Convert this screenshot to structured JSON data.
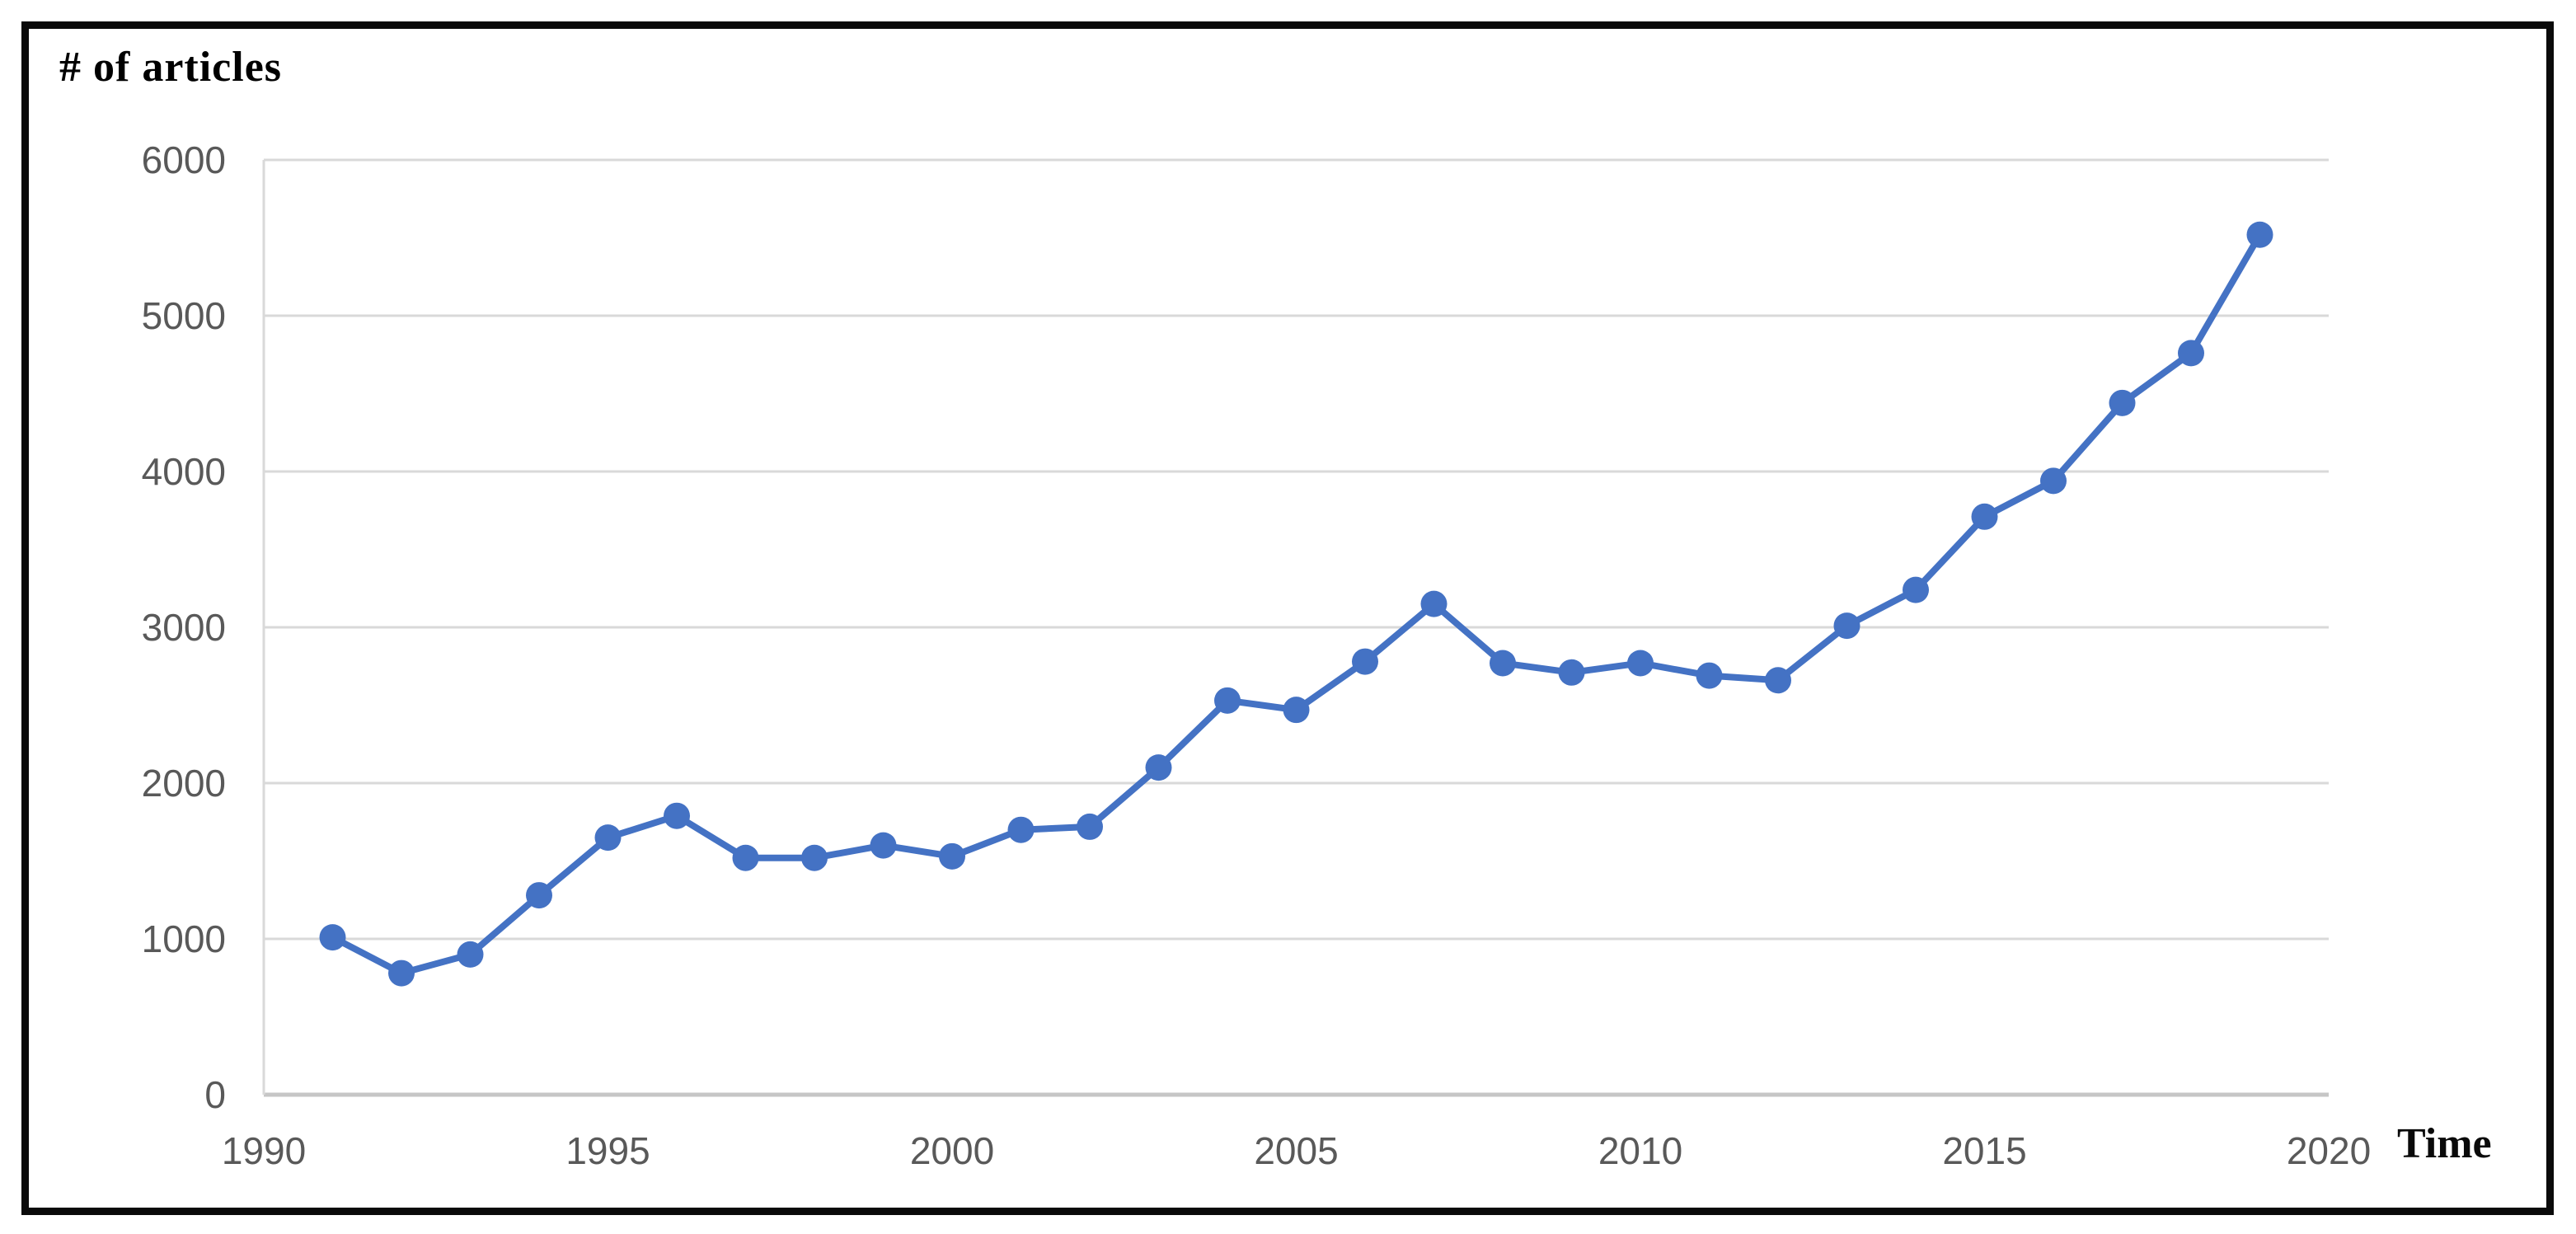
{
  "chart": {
    "title": "# of articles",
    "x_axis_title": "Time"
  },
  "chart_data": {
    "type": "line",
    "title": "# of articles",
    "xlabel": "Time",
    "ylabel": "# of articles",
    "x": [
      1991,
      1992,
      1993,
      1994,
      1995,
      1996,
      1997,
      1998,
      1999,
      2000,
      2001,
      2002,
      2003,
      2004,
      2005,
      2006,
      2007,
      2008,
      2009,
      2010,
      2011,
      2012,
      2013,
      2014,
      2015,
      2016,
      2017,
      2018,
      2019
    ],
    "series": [
      {
        "name": "# of articles",
        "values": [
          1010,
          780,
          900,
          1280,
          1650,
          1790,
          1520,
          1520,
          1600,
          1530,
          1700,
          1720,
          2100,
          2530,
          2470,
          2780,
          3150,
          2770,
          2710,
          2770,
          2690,
          2660,
          3010,
          3240,
          3710,
          3940,
          4440,
          4760,
          5520
        ]
      }
    ],
    "x_ticks": [
      1990,
      1995,
      2000,
      2005,
      2010,
      2015,
      2020
    ],
    "y_ticks": [
      0,
      1000,
      2000,
      3000,
      4000,
      5000,
      6000
    ],
    "xlim": [
      1990,
      2020
    ],
    "ylim": [
      0,
      6000
    ],
    "grid": "horizontal",
    "legend": "none",
    "marker": "circle",
    "line_color": "#4472C4",
    "gridline_color": "#D9D9D9",
    "axis_line_color": "#C6C6C6",
    "tick_label_color": "#595959"
  }
}
